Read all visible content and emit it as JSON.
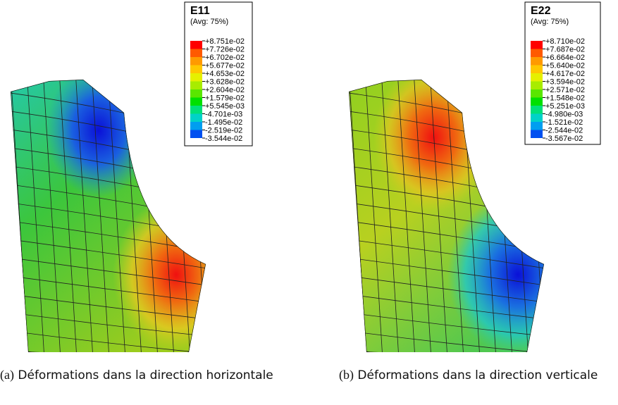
{
  "figures": [
    {
      "legend": {
        "title": "E11",
        "subtitle": "(Avg: 75%)",
        "labels": [
          "+8.751e-02",
          "+7.726e-02",
          "+6.702e-02",
          "+5.677e-02",
          "+4.653e-02",
          "+3.628e-02",
          "+2.604e-02",
          "+1.579e-02",
          "+5.545e-03",
          "-4.701e-03",
          "-1.495e-02",
          "-2.519e-02",
          "-3.544e-02"
        ]
      },
      "caption": {
        "label": "(a)",
        "text": "Déformations dans la direction horizontale"
      }
    },
    {
      "legend": {
        "title": "E22",
        "subtitle": "(Avg: 75%)",
        "labels": [
          "+8.710e-02",
          "+7.687e-02",
          "+6.664e-02",
          "+5.640e-02",
          "+4.617e-02",
          "+3.594e-02",
          "+2.571e-02",
          "+1.548e-02",
          "+5.251e-03",
          "-4.980e-03",
          "-1.521e-02",
          "-2.544e-02",
          "-3.567e-02"
        ]
      },
      "caption": {
        "label": "(b)",
        "text": "Déformations dans la direction verticale"
      }
    }
  ]
}
